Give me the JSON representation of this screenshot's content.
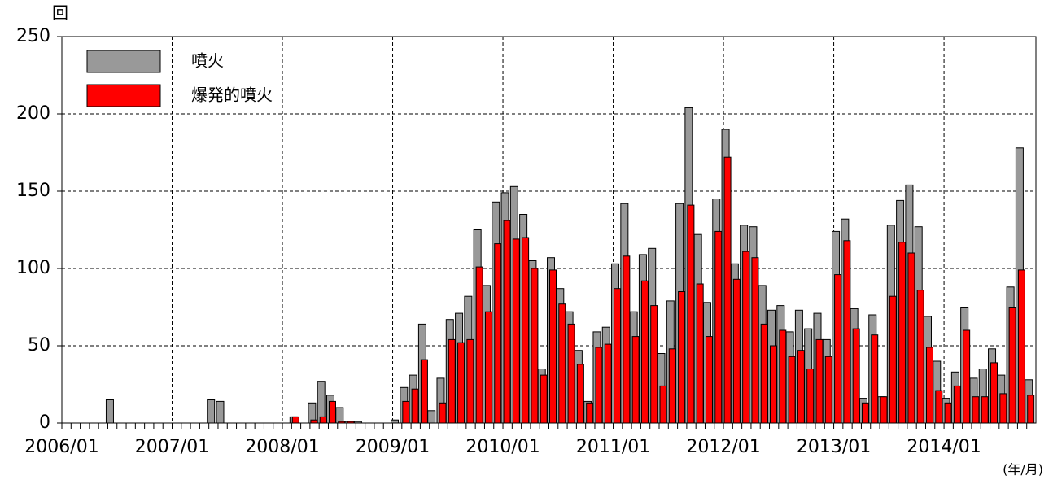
{
  "chart_data": {
    "type": "bar",
    "y_unit": "回",
    "x_unit": "(年/月)",
    "categories": [
      "2006/01",
      null,
      null,
      null,
      null,
      null,
      null,
      null,
      null,
      null,
      null,
      null,
      "2007/01",
      null,
      null,
      null,
      null,
      null,
      null,
      null,
      null,
      null,
      null,
      null,
      "2008/01",
      null,
      null,
      null,
      null,
      null,
      null,
      null,
      null,
      null,
      null,
      null,
      "2009/01",
      null,
      null,
      null,
      null,
      null,
      null,
      null,
      null,
      null,
      null,
      null,
      "2010/01",
      null,
      null,
      null,
      null,
      null,
      null,
      null,
      null,
      null,
      null,
      null,
      "2011/01",
      null,
      null,
      null,
      null,
      null,
      null,
      null,
      null,
      null,
      null,
      null,
      "2012/01",
      null,
      null,
      null,
      null,
      null,
      null,
      null,
      null,
      null,
      null,
      null,
      "2013/01",
      null,
      null,
      null,
      null,
      null,
      null,
      null,
      null,
      null,
      null,
      null,
      "2014/01",
      null,
      null,
      null,
      null,
      null,
      null,
      null,
      null,
      null
    ],
    "series": [
      {
        "name": "噴火",
        "color": "#999999",
        "values": [
          0,
          0,
          0,
          0,
          0,
          15,
          0,
          0,
          0,
          0,
          0,
          0,
          0,
          0,
          0,
          0,
          15,
          14,
          0,
          0,
          0,
          0,
          0,
          0,
          0,
          4,
          0,
          13,
          27,
          18,
          10,
          1,
          1,
          0,
          0,
          0,
          2,
          23,
          31,
          64,
          8,
          29,
          67,
          71,
          82,
          125,
          89,
          143,
          149,
          153,
          135,
          105,
          35,
          107,
          87,
          72,
          47,
          14,
          59,
          62,
          103,
          142,
          72,
          109,
          113,
          45,
          79,
          142,
          204,
          122,
          78,
          145,
          190,
          103,
          128,
          127,
          89,
          73,
          76,
          59,
          73,
          61,
          71,
          54,
          124,
          132,
          74,
          16,
          70,
          17,
          128,
          144,
          154,
          127,
          69,
          40,
          16,
          33,
          75,
          29,
          35,
          48,
          31,
          88,
          178,
          28
        ]
      },
      {
        "name": "爆発的噴火",
        "color": "#ff0000",
        "values": [
          0,
          0,
          0,
          0,
          0,
          0,
          0,
          0,
          0,
          0,
          0,
          0,
          0,
          0,
          0,
          0,
          0,
          0,
          0,
          0,
          0,
          0,
          0,
          0,
          0,
          4,
          0,
          2,
          4,
          14,
          1,
          1,
          0,
          0,
          0,
          0,
          0,
          14,
          22,
          41,
          0,
          13,
          54,
          52,
          54,
          101,
          72,
          116,
          131,
          119,
          120,
          100,
          31,
          99,
          77,
          64,
          38,
          13,
          49,
          51,
          87,
          108,
          56,
          92,
          76,
          24,
          48,
          85,
          141,
          90,
          56,
          124,
          172,
          93,
          111,
          107,
          64,
          50,
          60,
          43,
          47,
          35,
          54,
          43,
          96,
          118,
          61,
          13,
          57,
          17,
          82,
          117,
          110,
          86,
          49,
          21,
          13,
          24,
          60,
          17,
          17,
          39,
          19,
          75,
          99,
          18
        ]
      }
    ],
    "ylim": [
      0,
      250
    ],
    "yticks": [
      0,
      50,
      100,
      150,
      200,
      250
    ],
    "grid": true,
    "legend": "upper left"
  }
}
